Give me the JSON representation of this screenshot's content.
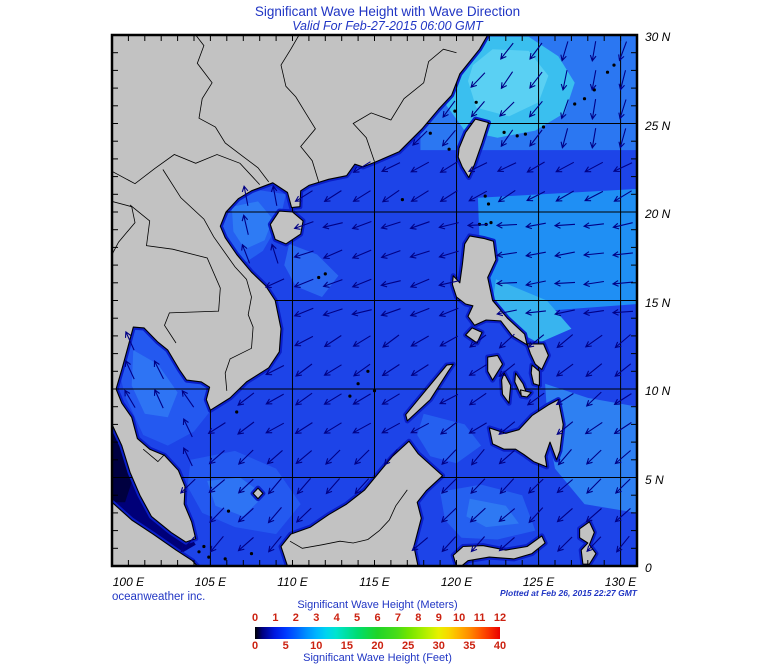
{
  "header": {
    "title": "Significant Wave Height with Wave Direction",
    "subtitle": "Valid For Feb-27-2015 06:00 GMT"
  },
  "branding": {
    "publisher": "oceanweather inc.",
    "plotted": "Plotted at Feb 26, 2015 22:27 GMT"
  },
  "map": {
    "lon_range_deg_e": [
      99,
      131
    ],
    "lat_range_deg_n": [
      0,
      30
    ],
    "grid_interval_deg": 5,
    "lat_labels": [
      {
        "text": "30 N",
        "lat": 30
      },
      {
        "text": "25 N",
        "lat": 25
      },
      {
        "text": "20 N",
        "lat": 20
      },
      {
        "text": "15 N",
        "lat": 15
      },
      {
        "text": "10 N",
        "lat": 10
      },
      {
        "text": "5 N",
        "lat": 5
      },
      {
        "text": "0",
        "lat": 0
      }
    ],
    "lon_labels": [
      {
        "text": "100 E",
        "lon": 100
      },
      {
        "text": "105 E",
        "lon": 105
      },
      {
        "text": "110 E",
        "lon": 110
      },
      {
        "text": "115 E",
        "lon": 115
      },
      {
        "text": "120 E",
        "lon": 120
      },
      {
        "text": "125 E",
        "lon": 125
      },
      {
        "text": "130 E",
        "lon": 130
      }
    ],
    "colors": {
      "land": "#C2C2C2",
      "coastline": "#000000",
      "ocean_base": "#1D44E8",
      "arrow": "#000085",
      "grid": "#000000",
      "coastal_low_band": "#0A1EC8"
    },
    "regions": [
      {
        "name": "andaman-malacca",
        "wave_m": "0-0.5",
        "color": "#000078"
      },
      {
        "name": "south-china-sea",
        "wave_m": "1.5-2",
        "color": "#1D44E8"
      },
      {
        "name": "gulf-of-thailand",
        "wave_m": "2-2.5",
        "color": "#2459F0"
      },
      {
        "name": "gulf-of-tonkin",
        "wave_m": "2-2.5",
        "color": "#2560F1"
      },
      {
        "name": "philippine-sea",
        "wave_m": "2.5-3",
        "color": "#1F8FF4"
      },
      {
        "name": "east-china-sea",
        "wave_m": "3-3.5",
        "color": "#3ABFEF"
      }
    ],
    "wave_direction_zones": [
      {
        "name": "gulf-of-thailand",
        "lon": [
          99,
          105
        ],
        "lat": [
          5.5,
          13.8
        ],
        "bearing": 330
      },
      {
        "name": "gulf-of-tonkin",
        "lon": [
          104,
          110.4
        ],
        "lat": [
          16.5,
          22
        ],
        "bearing": 345
      },
      {
        "name": "east-china-sea-e",
        "lon": [
          126,
          131
        ],
        "lat": [
          24,
          30
        ],
        "bearing": 195
      },
      {
        "name": "east-china-sea-w",
        "lon": [
          110,
          126
        ],
        "lat": [
          24,
          30
        ],
        "bearing": 220
      },
      {
        "name": "ne-scs-taiwan-strait",
        "lon": [
          110,
          131
        ],
        "lat": [
          20,
          24
        ],
        "bearing": 240
      },
      {
        "name": "philippine-sea-n",
        "lon": [
          121,
          131
        ],
        "lat": [
          14,
          20
        ],
        "bearing": 262
      },
      {
        "name": "central-scs",
        "lon": [
          109,
          121
        ],
        "lat": [
          14,
          20
        ],
        "bearing": 252
      },
      {
        "name": "south-scs",
        "lon": [
          104,
          122
        ],
        "lat": [
          7,
          14
        ],
        "bearing": 238
      },
      {
        "name": "philippine-sea-s",
        "lon": [
          122,
          131
        ],
        "lat": [
          7,
          14
        ],
        "bearing": 232
      },
      {
        "name": "sunda-celebes",
        "lon": [
          99,
          131
        ],
        "lat": [
          0,
          7
        ],
        "bearing": 225
      }
    ]
  },
  "legend": {
    "title_meters": "Significant Wave Height (Meters)",
    "title_feet": "Significant Wave Height (Feet)",
    "meters_ticks": [
      0,
      1,
      2,
      3,
      4,
      5,
      6,
      7,
      8,
      9,
      10,
      11,
      12
    ],
    "feet_ticks": [
      0,
      5,
      10,
      15,
      20,
      25,
      30,
      35,
      40
    ],
    "feet_max": 40,
    "label_color": "#CC2211",
    "title_color": "#2136C4",
    "gradient": [
      [
        0,
        "#000000"
      ],
      [
        0.03,
        "#000080"
      ],
      [
        0.08,
        "#0018E0"
      ],
      [
        0.125,
        "#0038FF"
      ],
      [
        0.17,
        "#0064FF"
      ],
      [
        0.21,
        "#0090FF"
      ],
      [
        0.25,
        "#00B4FF"
      ],
      [
        0.29,
        "#00D4F0"
      ],
      [
        0.33,
        "#00E4D0"
      ],
      [
        0.375,
        "#00E0A0"
      ],
      [
        0.42,
        "#00DC70"
      ],
      [
        0.46,
        "#10D948"
      ],
      [
        0.5,
        "#20D428"
      ],
      [
        0.58,
        "#48DC18"
      ],
      [
        0.625,
        "#70E400"
      ],
      [
        0.67,
        "#98EC00"
      ],
      [
        0.71,
        "#C0F000"
      ],
      [
        0.75,
        "#E8F000"
      ],
      [
        0.79,
        "#F8D800"
      ],
      [
        0.83,
        "#FFB400"
      ],
      [
        0.875,
        "#FF8C00"
      ],
      [
        0.92,
        "#FF5800"
      ],
      [
        0.96,
        "#F82C00"
      ],
      [
        1,
        "#E80000"
      ]
    ]
  }
}
